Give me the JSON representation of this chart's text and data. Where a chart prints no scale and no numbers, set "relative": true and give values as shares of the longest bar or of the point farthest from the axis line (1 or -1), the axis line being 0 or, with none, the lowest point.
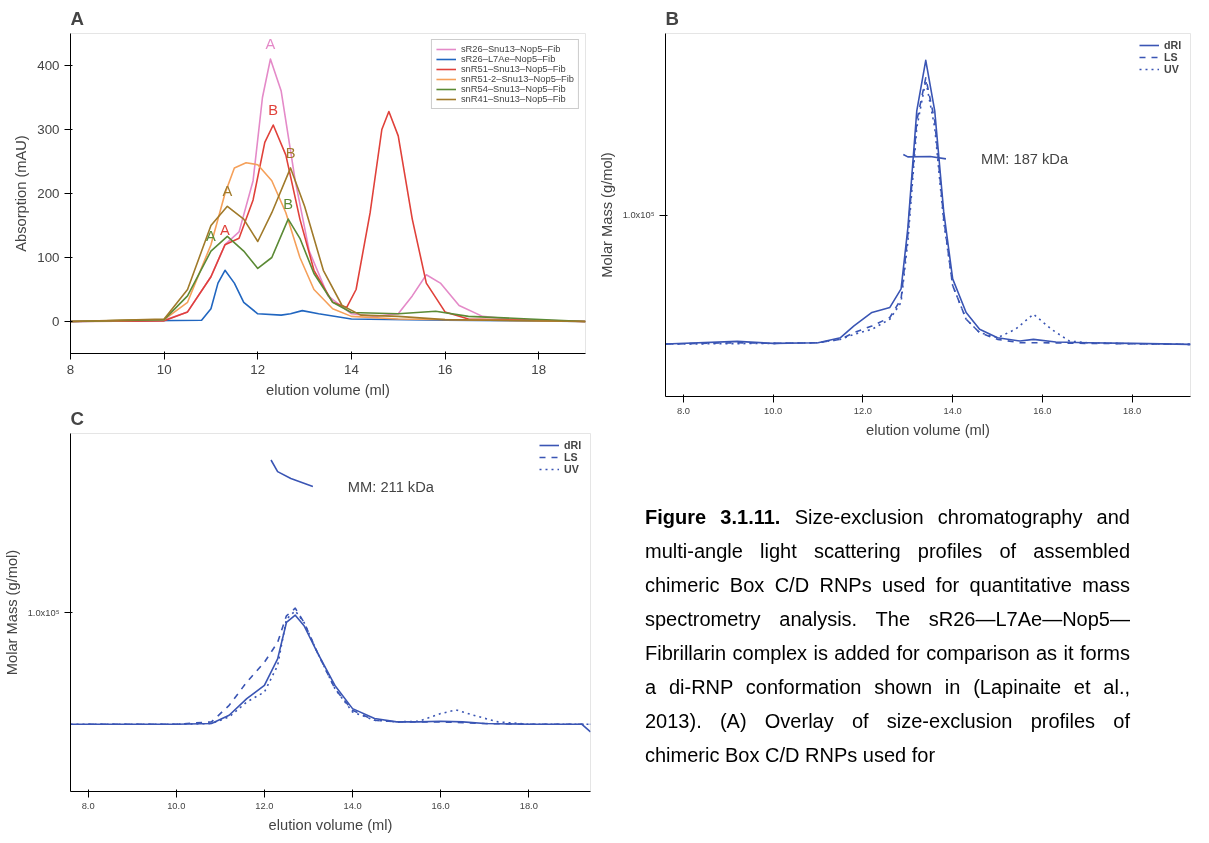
{
  "chart_data": [
    {
      "type": "line",
      "title": "A",
      "xlabel": "elution volume (ml)",
      "ylabel": "Absorption (mAU)",
      "xlim": [
        8,
        19
      ],
      "ylim": [
        -50,
        450
      ],
      "xticks": [
        8,
        10,
        12,
        14,
        16,
        18
      ],
      "yticks": [
        0,
        100,
        200,
        300,
        400
      ],
      "grid": false,
      "legend": "top right",
      "series": [
        {
          "name": "sR26–Snu13–Nop5–Fib",
          "color": "#e48ac8",
          "x": [
            8,
            10,
            10.5,
            11,
            11.3,
            11.6,
            11.9,
            12.1,
            12.27,
            12.5,
            12.8,
            13.1,
            13.5,
            14,
            14.5,
            15,
            15.3,
            15.6,
            15.9,
            16.3,
            16.8,
            17.5,
            19
          ],
          "values": [
            0,
            2,
            15,
            70,
            120,
            140,
            220,
            350,
            410,
            360,
            220,
            110,
            40,
            12,
            8,
            12,
            40,
            73,
            60,
            25,
            8,
            3,
            0
          ],
          "value_labels": [
            null,
            null,
            null,
            null,
            null,
            null,
            null,
            null,
            "A",
            null,
            null,
            null,
            null,
            null,
            null,
            null,
            null,
            null,
            null,
            null,
            null,
            null,
            null
          ]
        },
        {
          "name": "sR26–L7Ae–Nop5–Fib",
          "color": "#2166c0",
          "x": [
            8,
            10.8,
            11,
            11.15,
            11.3,
            11.5,
            11.7,
            12,
            12.5,
            12.7,
            12.95,
            13.3,
            14,
            16,
            19
          ],
          "values": [
            0,
            2,
            20,
            60,
            80,
            60,
            30,
            12,
            10,
            12,
            17,
            12,
            4,
            2,
            0
          ]
        },
        {
          "name": "snR51–Snu13–Nop5–Fib",
          "color": "#e0413a",
          "x": [
            8,
            10,
            10.5,
            11,
            11.3,
            11.6,
            11.9,
            12.15,
            12.33,
            12.6,
            12.9,
            13.2,
            13.6,
            13.9,
            14.1,
            14.4,
            14.65,
            14.8,
            15,
            15.3,
            15.6,
            16,
            16.5,
            19
          ],
          "values": [
            0,
            1,
            15,
            70,
            120,
            130,
            190,
            280,
            307,
            260,
            160,
            80,
            30,
            22,
            50,
            170,
            300,
            328,
            290,
            160,
            60,
            15,
            4,
            0
          ],
          "value_labels": [
            null,
            null,
            null,
            null,
            "A",
            null,
            null,
            null,
            "B",
            null,
            null,
            null,
            null,
            null,
            null,
            null,
            null,
            null,
            null,
            null,
            null,
            null,
            null,
            null
          ]
        },
        {
          "name": "snR51-2–Snu13–Nop5–Fib",
          "color": "#f5a05a",
          "x": [
            8,
            10,
            10.5,
            11,
            11.3,
            11.5,
            11.75,
            12,
            12.3,
            12.6,
            12.9,
            13.2,
            13.6,
            14,
            15,
            19
          ],
          "values": [
            0,
            3,
            30,
            120,
            200,
            240,
            248,
            245,
            220,
            170,
            100,
            50,
            20,
            8,
            4,
            0
          ]
        },
        {
          "name": "snR54–Snu13–Nop5–Fib",
          "color": "#5b8a35",
          "x": [
            8,
            10,
            10.5,
            11,
            11.35,
            11.7,
            12,
            12.3,
            12.65,
            12.9,
            13.2,
            13.6,
            14,
            15,
            15.8,
            16.5,
            17.8,
            19
          ],
          "values": [
            0,
            3,
            40,
            110,
            133,
            110,
            83,
            100,
            160,
            130,
            75,
            30,
            14,
            12,
            16,
            8,
            4,
            0
          ],
          "value_labels": [
            null,
            null,
            null,
            "A",
            null,
            null,
            null,
            null,
            "B",
            null,
            null,
            null,
            null,
            null,
            null,
            null,
            null,
            null
          ]
        },
        {
          "name": "snR41–Snu13–Nop5–Fib",
          "color": "#a07a2a",
          "x": [
            8,
            10,
            10.5,
            11,
            11.35,
            11.7,
            12,
            12.3,
            12.7,
            13,
            13.4,
            13.8,
            14.2,
            15,
            16,
            19
          ],
          "values": [
            0,
            4,
            50,
            150,
            180,
            160,
            125,
            170,
            240,
            180,
            80,
            25,
            10,
            8,
            3,
            0
          ],
          "value_labels": [
            null,
            null,
            null,
            null,
            "A",
            null,
            null,
            null,
            "B",
            null,
            null,
            null,
            null,
            null,
            null,
            null
          ]
        }
      ]
    },
    {
      "type": "line",
      "title": "B",
      "xlabel": "elution volume (ml)",
      "ylabel": "Molar Mass (g/mol)",
      "relative": true,
      "xlim": [
        7.6,
        19.3
      ],
      "xticks": [
        {
          "value": 8,
          "label": "8.0"
        },
        {
          "value": 10,
          "label": "10.0"
        },
        {
          "value": 12,
          "label": "12.0"
        },
        {
          "value": 14,
          "label": "14.0"
        },
        {
          "value": 16,
          "label": "16.0"
        },
        {
          "value": 18,
          "label": "18.0"
        }
      ],
      "grid": false,
      "legend": "top right",
      "annotations": [
        "MM: 187 kDa",
        "1.0x10⁵"
      ],
      "series": [
        {
          "name": "dRI",
          "color": "#3a55b4",
          "line_style": "solid",
          "x": [
            7.6,
            9.2,
            10,
            11,
            11.5,
            11.8,
            12.2,
            12.6,
            12.85,
            13,
            13.2,
            13.4,
            13.6,
            13.8,
            14,
            14.3,
            14.6,
            15,
            15.5,
            15.8,
            16.3,
            17,
            18,
            19.3
          ],
          "values": [
            0.156,
            0.164,
            0.158,
            0.16,
            0.175,
            0.21,
            0.25,
            0.265,
            0.32,
            0.5,
            0.85,
            1.0,
            0.85,
            0.55,
            0.35,
            0.25,
            0.2,
            0.175,
            0.165,
            0.17,
            0.162,
            0.16,
            0.158,
            0.155
          ]
        },
        {
          "name": "LS",
          "color": "#3a55b4",
          "line_style": "dashed",
          "x": [
            7.6,
            9.2,
            10,
            11,
            11.5,
            11.8,
            12.2,
            12.6,
            12.85,
            13,
            13.2,
            13.4,
            13.6,
            13.8,
            14,
            14.3,
            14.6,
            15,
            15.5,
            16,
            17,
            18,
            19.3
          ],
          "values": [
            0.156,
            0.16,
            0.158,
            0.16,
            0.17,
            0.19,
            0.21,
            0.235,
            0.29,
            0.48,
            0.82,
            0.948,
            0.82,
            0.53,
            0.33,
            0.23,
            0.19,
            0.17,
            0.16,
            0.16,
            0.158,
            0.157,
            0.155
          ]
        },
        {
          "name": "UV",
          "color": "#3a55b4",
          "line_style": "dotted",
          "x": [
            7.6,
            10,
            11,
            11.5,
            11.8,
            12.2,
            12.6,
            12.85,
            13,
            13.2,
            13.4,
            13.6,
            13.8,
            14,
            14.3,
            14.6,
            15,
            15.4,
            15.8,
            16.2,
            16.6,
            17,
            18,
            19.3
          ],
          "values": [
            0.156,
            0.158,
            0.16,
            0.17,
            0.185,
            0.2,
            0.23,
            0.28,
            0.46,
            0.8,
            0.94,
            0.8,
            0.52,
            0.33,
            0.23,
            0.19,
            0.175,
            0.2,
            0.245,
            0.2,
            0.165,
            0.16,
            0.157,
            0.155
          ]
        },
        {
          "color": "#3a55b4",
          "line_style": "solid",
          "x": [
            12.9,
            13.0,
            13.5,
            13.85
          ],
          "values": [
            0.72,
            0.713,
            0.714,
            0.707
          ]
        }
      ]
    },
    {
      "type": "line",
      "title": "C",
      "xlabel": "elution volume (ml)",
      "ylabel": "Molar Mass (g/mol)",
      "relative": true,
      "xlim": [
        7.6,
        19.4
      ],
      "xticks": [
        {
          "value": 8,
          "label": "8.0"
        },
        {
          "value": 10,
          "label": "10.0"
        },
        {
          "value": 12,
          "label": "12.0"
        },
        {
          "value": 14,
          "label": "14.0"
        },
        {
          "value": 16,
          "label": "16.0"
        },
        {
          "value": 18,
          "label": "18.0"
        }
      ],
      "grid": false,
      "legend": "top right",
      "annotations": [
        "MM: 211 kDa",
        "1.0x10⁵"
      ],
      "series": [
        {
          "name": "dRI",
          "color": "#3a55b4",
          "line_style": "solid",
          "x": [
            7.6,
            8.5,
            10,
            10.8,
            11.2,
            11.6,
            12.0,
            12.3,
            12.5,
            12.7,
            12.9,
            13.2,
            13.6,
            14,
            14.5,
            15,
            15.5,
            16,
            16.5,
            17,
            18,
            19.2,
            19.4
          ],
          "values": [
            0.203,
            0.203,
            0.203,
            0.205,
            0.23,
            0.28,
            0.32,
            0.4,
            0.51,
            0.532,
            0.5,
            0.42,
            0.32,
            0.25,
            0.22,
            0.21,
            0.21,
            0.212,
            0.21,
            0.205,
            0.203,
            0.203,
            0.18
          ]
        },
        {
          "name": "LS",
          "color": "#3a55b4",
          "line_style": "dashed",
          "x": [
            8,
            10,
            10.8,
            11.2,
            11.6,
            12.0,
            12.3,
            12.5,
            12.7,
            12.9,
            13.2,
            13.6,
            14,
            14.5,
            15,
            16,
            17,
            18,
            19.4
          ],
          "values": [
            0.203,
            0.203,
            0.21,
            0.26,
            0.33,
            0.39,
            0.45,
            0.53,
            0.553,
            0.51,
            0.42,
            0.31,
            0.245,
            0.215,
            0.21,
            0.21,
            0.205,
            0.203,
            0.203
          ]
        },
        {
          "name": "UV",
          "color": "#3a55b4",
          "line_style": "dotted",
          "x": [
            7.6,
            10,
            10.8,
            11.2,
            11.6,
            12.0,
            12.3,
            12.5,
            12.7,
            12.9,
            13.2,
            13.6,
            14,
            14.5,
            15,
            15.5,
            16,
            16.35,
            16.8,
            17.3,
            18,
            19.4
          ],
          "values": [
            0.203,
            0.203,
            0.205,
            0.225,
            0.27,
            0.3,
            0.38,
            0.52,
            0.545,
            0.51,
            0.42,
            0.31,
            0.24,
            0.215,
            0.21,
            0.212,
            0.235,
            0.246,
            0.228,
            0.21,
            0.203,
            0.203
          ]
        },
        {
          "color": "#3a55b4",
          "line_style": "solid",
          "x": [
            12.15,
            12.3,
            12.6,
            13.1
          ],
          "values": [
            1.0,
            0.965,
            0.944,
            0.92
          ]
        }
      ]
    },
    {
      "type": "other",
      "title": "Figure 3.1.11.",
      "subtitle": "Size-exclusion chromatography and multi-angle light scattering profiles of assembled chimeric Box C/D RNPs used for quantitative mass spectrometry analysis. The sR26—L7Ae—Nop5—Fibrillarin complex is added for comparison as it forms a di-RNP conformation shown in (Lapinaite et al., 2013). (A) Overlay of size-exclusion profiles of chimeric Box C/D RNPs used for"
    }
  ]
}
